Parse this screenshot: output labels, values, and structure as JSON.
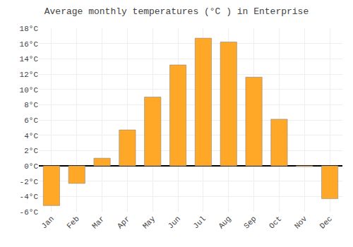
{
  "chart_data": {
    "type": "bar",
    "title": "Average monthly temperatures (°C ) in Enterprise",
    "categories": [
      "Jan",
      "Feb",
      "Mar",
      "Apr",
      "May",
      "Jun",
      "Jul",
      "Aug",
      "Sep",
      "Oct",
      "Nov",
      "Dec"
    ],
    "values": [
      -5.2,
      -2.3,
      1.0,
      4.7,
      9.0,
      13.2,
      16.7,
      16.2,
      11.6,
      6.1,
      -0.1,
      -4.3
    ],
    "color": "#FFA726",
    "ylim": [
      -6,
      18
    ],
    "yticks": [
      {
        "value": -6,
        "label": "-6°C"
      },
      {
        "value": -4,
        "label": "-4°C"
      },
      {
        "value": -2,
        "label": "-2°C"
      },
      {
        "value": 0,
        "label": "0°C"
      },
      {
        "value": 2,
        "label": "2°C"
      },
      {
        "value": 4,
        "label": "4°C"
      },
      {
        "value": 6,
        "label": "6°C"
      },
      {
        "value": 8,
        "label": "8°C"
      },
      {
        "value": 10,
        "label": "10°C"
      },
      {
        "value": 12,
        "label": "12°C"
      },
      {
        "value": 14,
        "label": "14°C"
      },
      {
        "value": 16,
        "label": "16°C"
      },
      {
        "value": 18,
        "label": "18°C"
      }
    ],
    "grid": true
  }
}
